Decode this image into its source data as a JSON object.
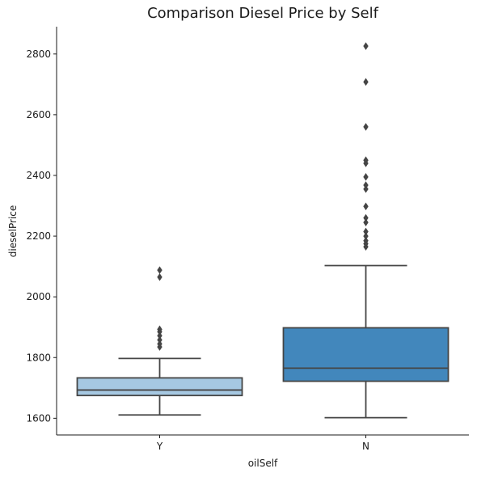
{
  "chart_data": {
    "type": "box",
    "title": "Comparison Diesel Price by Self",
    "xlabel": "oilSelf",
    "ylabel": "dieselPrice",
    "ylim": [
      1545,
      2890
    ],
    "yticks": [
      1600,
      1800,
      2000,
      2200,
      2400,
      2600,
      2800
    ],
    "grid": false,
    "categories": [
      "Y",
      "N"
    ],
    "boxes": [
      {
        "category": "Y",
        "color": "#a6c8e2",
        "whisker_low": 1611,
        "q1": 1675,
        "median": 1693,
        "q3": 1733,
        "whisker_high": 1797,
        "outliers": [
          1835,
          1845,
          1858,
          1872,
          1885,
          1893,
          2065,
          2088
        ]
      },
      {
        "category": "N",
        "color": "#4287bc",
        "whisker_low": 1602,
        "q1": 1722,
        "median": 1765,
        "q3": 1898,
        "whisker_high": 2103,
        "outliers": [
          2165,
          2175,
          2185,
          2200,
          2215,
          2245,
          2260,
          2298,
          2355,
          2368,
          2395,
          2440,
          2450,
          2560,
          2708,
          2826
        ]
      }
    ]
  }
}
